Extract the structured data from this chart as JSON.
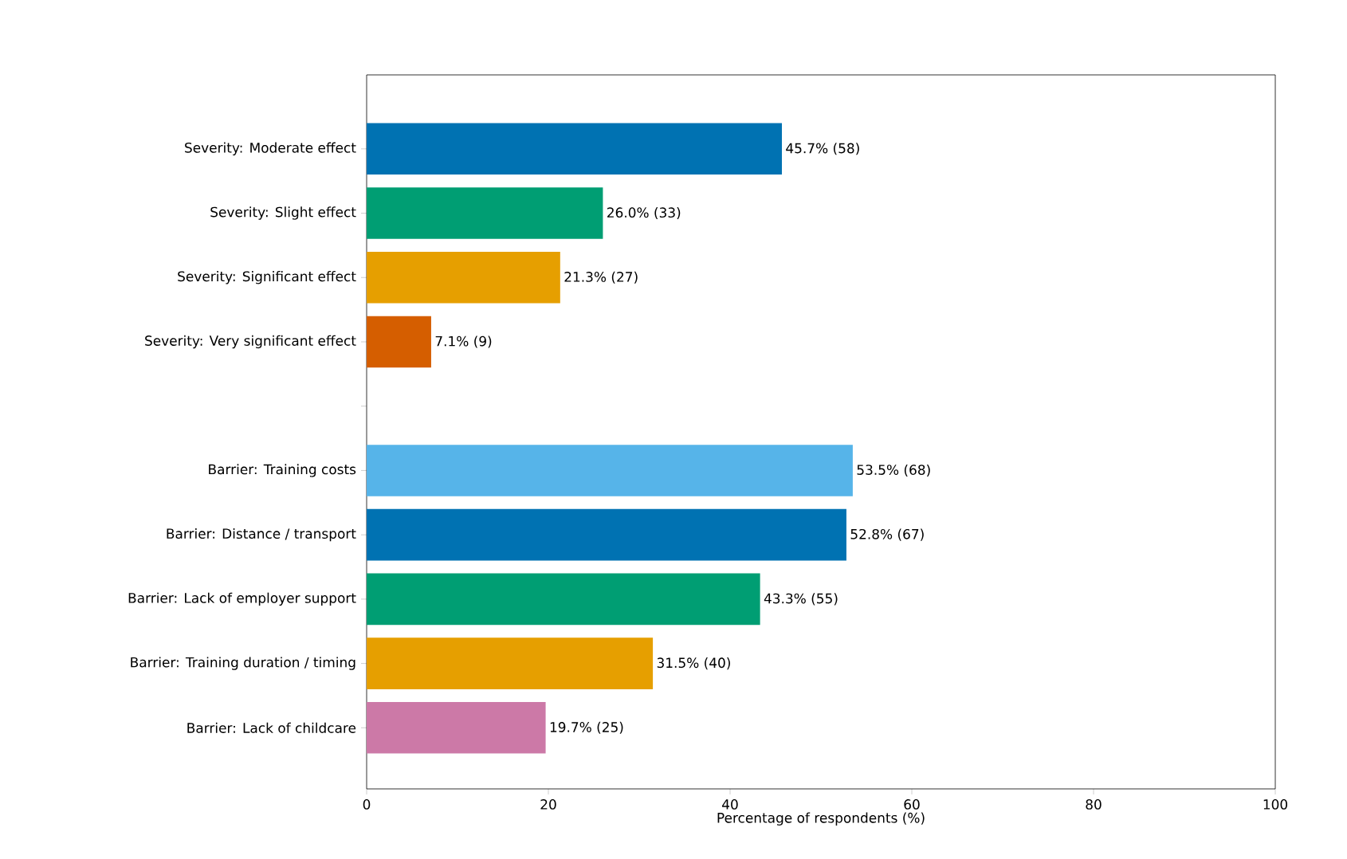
{
  "chart_data": {
    "type": "bar",
    "orientation": "horizontal",
    "categories": [
      "Severity: Moderate effect",
      "Severity: Slight effect",
      "Severity: Significant effect",
      "Severity: Very significant effect",
      null,
      "Barrier: Training costs",
      "Barrier: Distance / transport",
      "Barrier: Lack of employer support",
      "Barrier: Training duration / timing",
      "Barrier: Lack of childcare"
    ],
    "values": [
      45.7,
      26.0,
      21.3,
      7.1,
      null,
      53.5,
      52.8,
      43.3,
      31.5,
      19.7
    ],
    "colors": [
      "#0072b2",
      "#009e73",
      "#e69f00",
      "#d55e00",
      null,
      "#56b4e9",
      "#0072b2",
      "#009e73",
      "#e69f00",
      "#cc79a7"
    ],
    "value_labels": [
      "45.7% (58)",
      "26.0% (33)",
      "21.3% (27)",
      "7.1% (9)",
      null,
      "53.5% (68)",
      "52.8% (67)",
      "43.3% (55)",
      "31.5% (40)",
      "19.7% (25)"
    ],
    "xlabel": "Percentage of respondents (%)",
    "xlim": [
      0,
      100
    ],
    "xticks": [
      0,
      20,
      40,
      60,
      80,
      100
    ]
  }
}
